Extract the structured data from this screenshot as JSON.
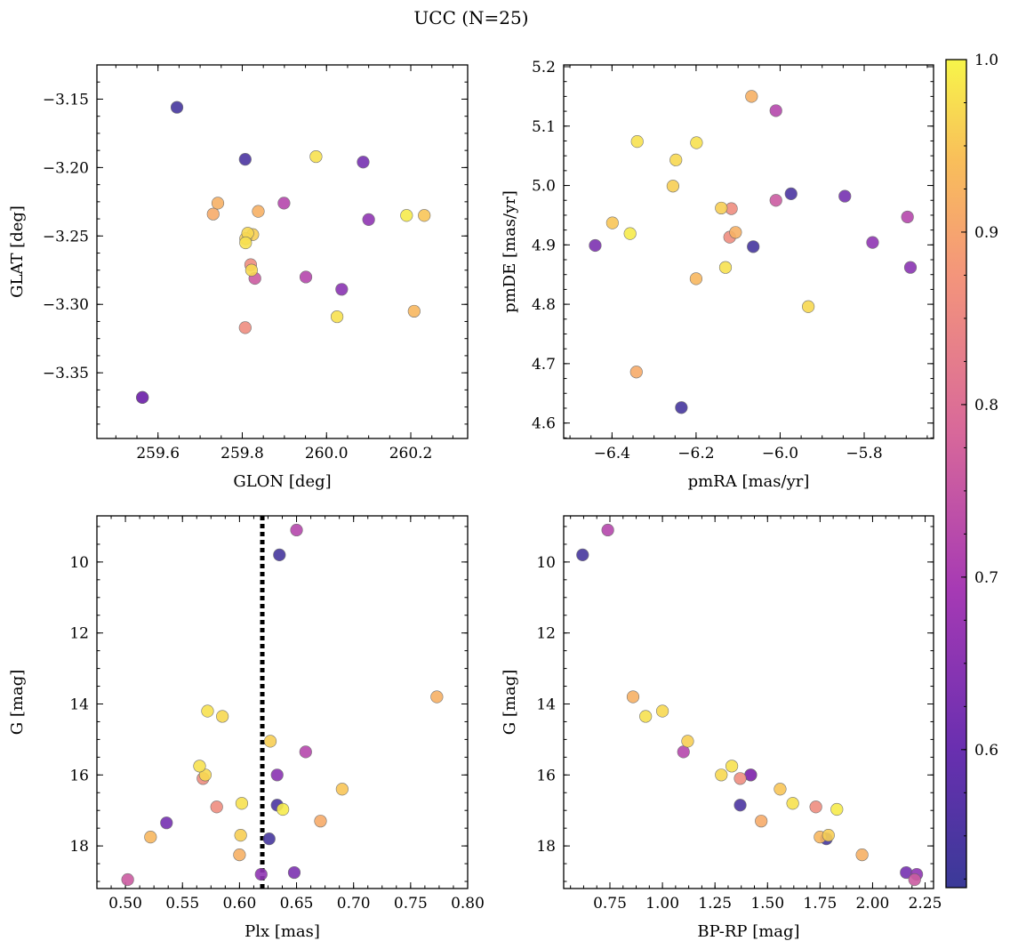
{
  "chart_data": {
    "suptitle": "UCC (N=25)",
    "colorbar": {
      "range": [
        0.52,
        1.0
      ],
      "ticks": [
        0.6,
        0.7,
        0.8,
        0.9,
        1.0
      ],
      "tick_labels": [
        "0.6",
        "0.7",
        "0.8",
        "0.9",
        "1.0"
      ],
      "colormap": "plasma"
    },
    "probabilities": [
      0.54,
      0.55,
      0.62,
      0.66,
      0.63,
      0.92,
      0.91,
      0.92,
      0.98,
      0.97,
      0.96,
      0.99,
      0.95,
      0.98,
      0.72,
      0.72,
      0.65,
      0.86,
      0.98,
      0.93,
      0.54,
      0.86,
      0.96,
      0.97,
      0.76
    ],
    "panels": [
      {
        "type": "scatter",
        "xlabel": "GLON [deg]",
        "ylabel": "GLAT [deg]",
        "xlim": [
          259.455,
          260.335
        ],
        "ylim": [
          -3.398,
          -3.125
        ],
        "invert_y": false,
        "xticks": [
          259.6,
          259.8,
          260.0,
          260.2
        ],
        "xtick_labels": [
          "259.6",
          "259.8",
          "260.0",
          "260.2"
        ],
        "yticks": [
          -3.35,
          -3.3,
          -3.25,
          -3.2,
          -3.15
        ],
        "ytick_labels": [
          "−3.35",
          "−3.30",
          "−3.25",
          "−3.20",
          "−3.15"
        ],
        "x": [
          259.645,
          259.807,
          260.087,
          260.1,
          259.563,
          259.742,
          259.731,
          259.838,
          259.975,
          259.813,
          259.825,
          260.19,
          260.232,
          259.808,
          259.899,
          259.951,
          260.036,
          259.807,
          260.025,
          260.208,
          259.563,
          259.82,
          259.808,
          259.822,
          259.83
        ],
        "y": [
          -3.156,
          -3.194,
          -3.196,
          -3.238,
          -3.368,
          -3.226,
          -3.234,
          -3.232,
          -3.192,
          -3.248,
          -3.249,
          -3.235,
          -3.235,
          -3.255,
          -3.226,
          -3.28,
          -3.289,
          -3.317,
          -3.309,
          -3.305,
          -3.368,
          -3.271,
          -3.252,
          -3.275,
          -3.281
        ]
      },
      {
        "type": "scatter",
        "xlabel": "pmRA [mas/yr]",
        "ylabel": "pmDE [mas/yr]",
        "xlim": [
          -6.515,
          -5.635
        ],
        "ylim": [
          4.574,
          5.203
        ],
        "invert_y": false,
        "xticks": [
          -6.4,
          -6.2,
          -6.0,
          -5.8
        ],
        "xtick_labels": [
          "−6.4",
          "−6.2",
          "−6.0",
          "−5.8"
        ],
        "yticks": [
          4.6,
          4.7,
          4.8,
          4.9,
          5.0,
          5.1,
          5.2
        ],
        "ytick_labels": [
          "4.6",
          "4.7",
          "4.8",
          "4.9",
          "5.0",
          "5.1",
          "5.2"
        ],
        "x": [
          -6.235,
          -5.974,
          -5.846,
          -5.78,
          -6.44,
          -6.068,
          -6.342,
          -6.106,
          -6.34,
          -6.248,
          -6.255,
          -6.357,
          -6.399,
          -6.199,
          -5.697,
          -6.01,
          -5.69,
          -6.116,
          -6.13,
          -6.2,
          -6.064,
          -6.12,
          -6.14,
          -5.933,
          -6.01
        ],
        "y": [
          4.626,
          4.986,
          4.982,
          4.904,
          4.899,
          5.15,
          4.686,
          4.921,
          5.074,
          5.043,
          4.999,
          4.919,
          4.937,
          5.072,
          4.947,
          5.126,
          4.862,
          4.961,
          4.862,
          4.843,
          4.897,
          4.913,
          4.962,
          4.796,
          4.975
        ]
      },
      {
        "type": "scatter",
        "xlabel": "Plx [mas]",
        "ylabel": "G [mag]",
        "xlim": [
          0.475,
          0.8
        ],
        "ylim": [
          19.2,
          8.7
        ],
        "invert_y": true,
        "xticks": [
          0.5,
          0.55,
          0.6,
          0.65,
          0.7,
          0.75,
          0.8
        ],
        "xtick_labels": [
          "0.50",
          "0.55",
          "0.60",
          "0.65",
          "0.70",
          "0.75",
          "0.80"
        ],
        "yticks": [
          10,
          12,
          14,
          16,
          18
        ],
        "ytick_labels": [
          "10",
          "12",
          "14",
          "16",
          "18"
        ],
        "vline": 0.62,
        "x": [
          0.635,
          0.633,
          0.536,
          0.619,
          0.648,
          0.773,
          0.671,
          0.6,
          0.572,
          0.585,
          0.627,
          0.638,
          0.69,
          0.602,
          0.65,
          0.658,
          0.633,
          0.58,
          0.565,
          0.522,
          0.626,
          0.568,
          0.601,
          0.57,
          0.502
        ],
        "y": [
          9.8,
          16.85,
          17.35,
          18.8,
          18.75,
          13.8,
          17.3,
          18.25,
          14.2,
          14.35,
          15.05,
          16.97,
          16.4,
          16.8,
          9.1,
          15.35,
          16.0,
          16.9,
          15.75,
          17.75,
          17.8,
          16.1,
          17.7,
          16.0,
          18.95
        ]
      },
      {
        "type": "scatter",
        "xlabel": "BP-RP [mag]",
        "ylabel": "G [mag]",
        "xlim": [
          0.53,
          2.29
        ],
        "ylim": [
          19.2,
          8.7
        ],
        "invert_y": true,
        "xticks": [
          0.75,
          1.0,
          1.25,
          1.5,
          1.75,
          2.0,
          2.25
        ],
        "xtick_labels": [
          "0.75",
          "1.00",
          "1.25",
          "1.50",
          "1.75",
          "2.00",
          "2.25"
        ],
        "yticks": [
          10,
          12,
          14,
          16,
          18
        ],
        "ytick_labels": [
          "10",
          "12",
          "14",
          "16",
          "18"
        ],
        "x": [
          0.62,
          1.37,
          2.16,
          2.21,
          1.42,
          0.86,
          1.47,
          1.95,
          0.92,
          1.0,
          1.12,
          1.83,
          1.56,
          1.62,
          0.74,
          1.1,
          1.42,
          1.73,
          1.33,
          1.75,
          1.78,
          1.37,
          1.79,
          1.28,
          2.2
        ],
        "y": [
          9.8,
          16.85,
          18.75,
          18.8,
          16.0,
          13.8,
          17.3,
          18.25,
          14.35,
          14.2,
          15.05,
          16.97,
          16.4,
          16.8,
          9.1,
          15.35,
          16.0,
          16.9,
          15.75,
          17.75,
          17.8,
          16.1,
          17.7,
          16.0,
          18.95
        ]
      }
    ]
  }
}
